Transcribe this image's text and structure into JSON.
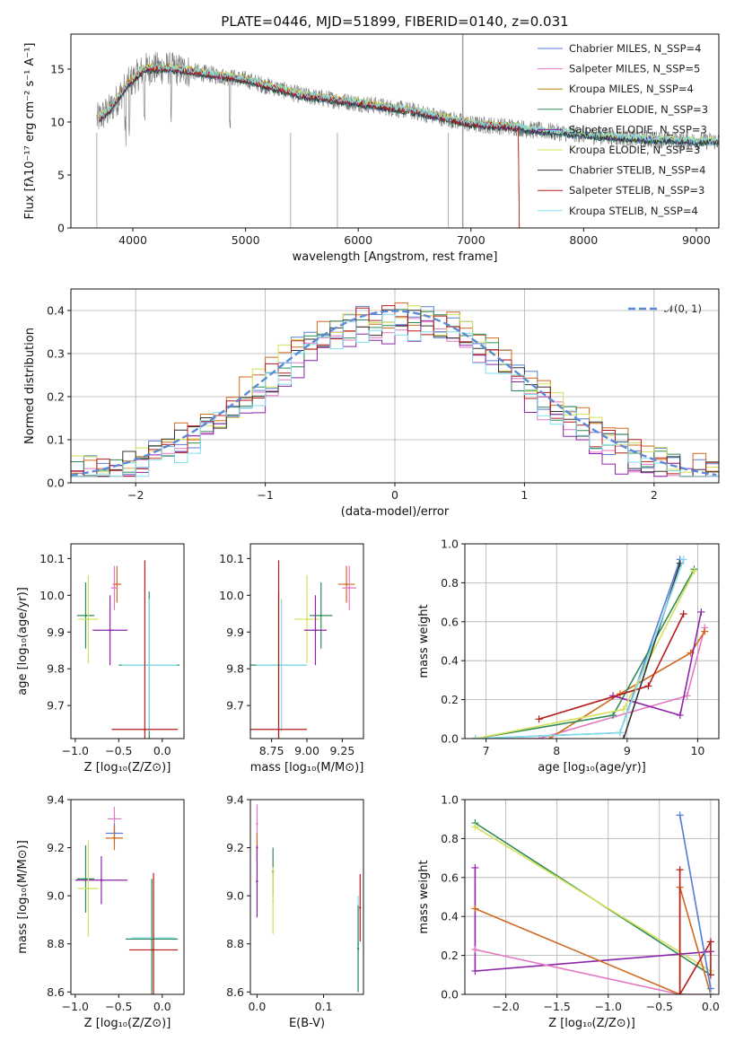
{
  "chart_data": [
    {
      "id": "spectrum",
      "type": "line",
      "title": "PLATE=0446, MJD=51899, FIBERID=0140, z=0.031",
      "xlabel": "wavelength [Angstrom, rest frame]",
      "ylabel": "Flux [fλ10⁻¹⁷ erg cm⁻² s⁻¹ A⁻¹]",
      "xlim": [
        3450,
        9200
      ],
      "ylim": [
        0,
        18.3
      ],
      "xticks": [
        4000,
        5000,
        6000,
        7000,
        8000,
        9000
      ],
      "yticks": [
        0,
        5,
        10,
        15
      ],
      "grid": false,
      "legend_position": "top-right",
      "data_profile": {
        "wavelength": [
          3680,
          3800,
          3950,
          4100,
          4300,
          4500,
          5000,
          5500,
          6000,
          6500,
          7000,
          7420,
          7500,
          8000,
          8500,
          9000
        ],
        "flux": [
          10.2,
          11.2,
          13.5,
          15.0,
          15.1,
          14.8,
          14.0,
          12.5,
          11.8,
          11.0,
          9.8,
          9.5,
          9.3,
          8.8,
          8.4,
          8.2
        ]
      },
      "series": [
        {
          "name": "Chabrier MILES, N_SSP=4",
          "color": "#5a7fd6"
        },
        {
          "name": "Salpeter MILES, N_SSP=5",
          "color": "#e377c2"
        },
        {
          "name": "Kroupa MILES, N_SSP=4",
          "color": "#b8860b"
        },
        {
          "name": "Chabrier ELODIE, N_SSP=3",
          "color": "#2e8b57"
        },
        {
          "name": "Salpeter ELODIE, N_SSP=3",
          "color": "#8e24aa"
        },
        {
          "name": "Kroupa ELODIE, N_SSP=3",
          "color": "#d4e157"
        },
        {
          "name": "Chabrier STELIB, N_SSP=4",
          "color": "#333333"
        },
        {
          "name": "Salpeter STELIB, N_SSP=3",
          "color": "#b71c1c"
        },
        {
          "name": "Kroupa STELIB, N_SSP=4",
          "color": "#80deea"
        }
      ]
    },
    {
      "id": "residuals",
      "type": "line",
      "xlabel": "(data-model)/error",
      "ylabel": "Normed distribution",
      "xlim": [
        -2.5,
        2.5
      ],
      "ylim": [
        0,
        0.45
      ],
      "xticks": [
        -2,
        -1,
        0,
        1,
        2
      ],
      "yticks": [
        0.0,
        0.1,
        0.2,
        0.3,
        0.4
      ],
      "grid": true,
      "legend_position": "top-right",
      "legend": "𝒩(0, 1)",
      "reference_curve": {
        "name": "𝒩(0, 1)",
        "mu": 0,
        "sigma": 1,
        "color": "#5b8ad6"
      },
      "histogram_bins": {
        "start": -2.5,
        "width": 0.1,
        "count": 50
      },
      "series": [
        {
          "name": "Chabrier MILES",
          "color": "#5a7fd6",
          "offset": 0.01
        },
        {
          "name": "Salpeter MILES",
          "color": "#e377c2",
          "offset": -0.015
        },
        {
          "name": "Kroupa MILES",
          "color": "#d2691e",
          "offset": 0.02
        },
        {
          "name": "Chabrier ELODIE",
          "color": "#2e8b57",
          "offset": 0.005
        },
        {
          "name": "Salpeter ELODIE",
          "color": "#8e24aa",
          "offset": -0.02
        },
        {
          "name": "Kroupa ELODIE",
          "color": "#d4e157",
          "offset": 0.015
        },
        {
          "name": "Chabrier STELIB",
          "color": "#333333",
          "offset": 0.0
        },
        {
          "name": "Salpeter STELIB",
          "color": "#b71c1c",
          "offset": 0.008
        },
        {
          "name": "Kroupa STELIB",
          "color": "#80deea",
          "offset": -0.01
        }
      ]
    },
    {
      "id": "z-age",
      "type": "scatter",
      "xlabel": "Z [log₁₀(Z/Z⊙)]",
      "ylabel": "age  [log₁₀(age/yr)]",
      "xlim": [
        -1.05,
        0.25
      ],
      "ylim": [
        9.61,
        10.14
      ],
      "xticks": [
        -1.0,
        -0.5,
        0.0
      ],
      "yticks": [
        9.7,
        9.8,
        9.9,
        10.0,
        10.1
      ],
      "grid": false,
      "points": [
        {
          "x": -0.52,
          "y": 10.03,
          "xerr": 0.05,
          "yerr": 0.05,
          "color": "#d2691e"
        },
        {
          "x": -0.55,
          "y": 10.02,
          "xerr": 0.04,
          "yerr": 0.06,
          "color": "#e377c2"
        },
        {
          "x": -0.88,
          "y": 9.945,
          "xerr": 0.1,
          "yerr": 0.09,
          "color": "#2e8b57"
        },
        {
          "x": -0.85,
          "y": 9.935,
          "xerr": 0.12,
          "yerr": 0.12,
          "color": "#d4e157"
        },
        {
          "x": -0.6,
          "y": 9.905,
          "xerr": 0.2,
          "yerr": 0.095,
          "color": "#8e24aa"
        },
        {
          "x": -0.15,
          "y": 9.81,
          "xerr": 0.35,
          "yerr": 0.2,
          "color": "#2e8b57"
        },
        {
          "x": -0.15,
          "y": 9.81,
          "xerr": 0.32,
          "yerr": 0.18,
          "color": "#80deea"
        },
        {
          "x": -0.2,
          "y": 9.635,
          "xerr": 0.38,
          "yerr": 0.46,
          "color": "#b71c1c"
        }
      ]
    },
    {
      "id": "mass-age",
      "type": "scatter",
      "xlabel": "mass [log₁₀(M/M⊙)]",
      "ylabel": "",
      "xlim": [
        8.6,
        9.4
      ],
      "ylim": [
        9.61,
        10.14
      ],
      "xticks": [
        8.75,
        9.0,
        9.25
      ],
      "yticks": [
        9.7,
        9.8,
        9.9,
        10.0,
        10.1
      ],
      "grid": false,
      "points": [
        {
          "x": 9.28,
          "y": 10.03,
          "xerr": 0.06,
          "yerr": 0.05,
          "color": "#d2691e"
        },
        {
          "x": 9.3,
          "y": 10.02,
          "xerr": 0.05,
          "yerr": 0.06,
          "color": "#e377c2"
        },
        {
          "x": 9.1,
          "y": 9.945,
          "xerr": 0.08,
          "yerr": 0.09,
          "color": "#2e8b57"
        },
        {
          "x": 9.0,
          "y": 9.935,
          "xerr": 0.09,
          "yerr": 0.12,
          "color": "#d4e157"
        },
        {
          "x": 9.06,
          "y": 9.905,
          "xerr": 0.08,
          "yerr": 0.095,
          "color": "#8e24aa"
        },
        {
          "x": 8.8,
          "y": 9.81,
          "xerr": 0.2,
          "yerr": 0.2,
          "color": "#2e8b57"
        },
        {
          "x": 8.82,
          "y": 9.81,
          "xerr": 0.18,
          "yerr": 0.18,
          "color": "#80deea"
        },
        {
          "x": 8.8,
          "y": 9.635,
          "xerr": 0.2,
          "yerr": 0.46,
          "color": "#b71c1c"
        }
      ]
    },
    {
      "id": "age-weight",
      "type": "line",
      "xlabel": "age  [log₁₀(age/yr)]",
      "ylabel": "mass weight",
      "xlim": [
        6.7,
        10.3
      ],
      "ylim": [
        0,
        1.0
      ],
      "xticks": [
        7,
        8,
        9,
        10
      ],
      "yticks": [
        0.0,
        0.2,
        0.4,
        0.6,
        0.8,
        1.0
      ],
      "grid": true,
      "series": [
        {
          "color": "#5a7fd6",
          "x": [
            6.85,
            8.9,
            9.75
          ],
          "y": [
            0.0,
            0.03,
            0.92
          ]
        },
        {
          "color": "#e377c2",
          "x": [
            6.85,
            7.75,
            9.85,
            10.1
          ],
          "y": [
            0.0,
            0.0,
            0.22,
            0.57
          ]
        },
        {
          "color": "#d2691e",
          "x": [
            7.9,
            8.9,
            9.9,
            10.1
          ],
          "y": [
            0.0,
            0.23,
            0.44,
            0.55
          ]
        },
        {
          "color": "#2e8b57",
          "x": [
            6.85,
            8.8,
            9.95
          ],
          "y": [
            0.0,
            0.12,
            0.87
          ]
        },
        {
          "color": "#8e24aa",
          "x": [
            8.8,
            9.75,
            10.05
          ],
          "y": [
            0.22,
            0.12,
            0.65
          ]
        },
        {
          "color": "#d4e157",
          "x": [
            6.85,
            8.95,
            9.95
          ],
          "y": [
            0.0,
            0.15,
            0.86
          ]
        },
        {
          "color": "#333333",
          "x": [
            8.95,
            9.75
          ],
          "y": [
            0.0,
            0.9
          ]
        },
        {
          "color": "#b71c1c",
          "x": [
            7.75,
            9.3,
            9.8
          ],
          "y": [
            0.1,
            0.27,
            0.64
          ]
        },
        {
          "color": "#80deea",
          "x": [
            6.85,
            8.9,
            9.8
          ],
          "y": [
            0.0,
            0.03,
            0.92
          ]
        }
      ]
    },
    {
      "id": "z-mass",
      "type": "scatter",
      "xlabel": "Z [log₁₀(Z/Z⊙)]",
      "ylabel": "mass [log₁₀(M/M⊙)]",
      "xlim": [
        -1.05,
        0.25
      ],
      "ylim": [
        8.59,
        9.4
      ],
      "xticks": [
        -1.0,
        -0.5,
        0.0
      ],
      "yticks": [
        8.6,
        8.8,
        9.0,
        9.2,
        9.4
      ],
      "grid": false,
      "points": [
        {
          "x": -0.55,
          "y": 9.32,
          "xerr": 0.08,
          "yerr": 0.05,
          "color": "#e377c2"
        },
        {
          "x": -0.55,
          "y": 9.26,
          "xerr": 0.1,
          "yerr": 0.04,
          "color": "#5a7fd6"
        },
        {
          "x": -0.55,
          "y": 9.24,
          "xerr": 0.1,
          "yerr": 0.05,
          "color": "#d2691e"
        },
        {
          "x": -0.88,
          "y": 9.07,
          "xerr": 0.1,
          "yerr": 0.14,
          "color": "#2e8b57"
        },
        {
          "x": -0.7,
          "y": 9.065,
          "xerr": 0.3,
          "yerr": 0.1,
          "color": "#8e24aa"
        },
        {
          "x": -0.85,
          "y": 9.03,
          "xerr": 0.12,
          "yerr": 0.2,
          "color": "#d4e157"
        },
        {
          "x": -0.12,
          "y": 8.82,
          "xerr": 0.3,
          "yerr": 0.25,
          "color": "#2e8b57"
        },
        {
          "x": -0.1,
          "y": 8.825,
          "xerr": 0.25,
          "yerr": 0.2,
          "color": "#80deea"
        },
        {
          "x": -0.1,
          "y": 8.775,
          "xerr": 0.28,
          "yerr": 0.32,
          "color": "#b71c1c"
        }
      ]
    },
    {
      "id": "ebv-mass",
      "type": "scatter",
      "xlabel": "E(B-V)",
      "ylabel": "",
      "xlim": [
        -0.01,
        0.16
      ],
      "ylim": [
        8.59,
        9.4
      ],
      "xticks": [
        0.0,
        0.1
      ],
      "yticks": [
        8.6,
        8.8,
        9.0,
        9.2,
        9.4
      ],
      "grid": false,
      "points": [
        {
          "x": 0.0,
          "y": 9.3,
          "xerr": 0.001,
          "yerr": 0.08,
          "color": "#e377c2"
        },
        {
          "x": 0.0,
          "y": 9.2,
          "xerr": 0.001,
          "yerr": 0.06,
          "color": "#d2691e"
        },
        {
          "x": 0.0,
          "y": 9.06,
          "xerr": 0.001,
          "yerr": 0.15,
          "color": "#8e24aa"
        },
        {
          "x": 0.024,
          "y": 9.1,
          "xerr": 0.001,
          "yerr": 0.1,
          "color": "#2e8b57"
        },
        {
          "x": 0.024,
          "y": 8.98,
          "xerr": 0.001,
          "yerr": 0.14,
          "color": "#d4e157"
        },
        {
          "x": 0.155,
          "y": 8.95,
          "xerr": 0.001,
          "yerr": 0.14,
          "color": "#b71c1c"
        },
        {
          "x": 0.152,
          "y": 8.8,
          "xerr": 0.001,
          "yerr": 0.2,
          "color": "#80deea"
        },
        {
          "x": 0.152,
          "y": 8.78,
          "xerr": 0.001,
          "yerr": 0.18,
          "color": "#2e8b57"
        }
      ]
    },
    {
      "id": "z-weight",
      "type": "line",
      "xlabel": "Z [log₁₀(Z/Z⊙)]",
      "ylabel": "mass weight",
      "xlim": [
        -2.4,
        0.08
      ],
      "ylim": [
        0,
        1.0
      ],
      "xticks": [
        -2.0,
        -1.5,
        -1.0,
        -0.5,
        0.0
      ],
      "yticks": [
        0.0,
        0.2,
        0.4,
        0.6,
        0.8,
        1.0
      ],
      "grid": true,
      "series": [
        {
          "color": "#2e8b57",
          "x": [
            -2.3,
            0.0
          ],
          "y": [
            0.88,
            0.1
          ]
        },
        {
          "color": "#d4e157",
          "x": [
            -2.3,
            0.0
          ],
          "y": [
            0.86,
            0.12
          ]
        },
        {
          "color": "#8e24aa",
          "x": [
            -2.3,
            -2.3,
            0.0
          ],
          "y": [
            0.65,
            0.12,
            0.22
          ]
        },
        {
          "color": "#e377c2",
          "x": [
            -2.3,
            -0.3,
            0.0
          ],
          "y": [
            0.23,
            0.0,
            0.0
          ]
        },
        {
          "color": "#d2691e",
          "x": [
            -2.3,
            -0.3,
            -0.3,
            0.0
          ],
          "y": [
            0.44,
            0.0,
            0.55,
            0.0
          ]
        },
        {
          "color": "#b71c1c",
          "x": [
            -0.3,
            -0.3,
            0.0,
            0.0
          ],
          "y": [
            0.64,
            0.0,
            0.27,
            0.1
          ]
        },
        {
          "color": "#80deea",
          "x": [
            -0.3,
            0.0,
            0.0
          ],
          "y": [
            0.92,
            0.03,
            0.0
          ]
        },
        {
          "color": "#5a7fd6",
          "x": [
            -0.3,
            0.0
          ],
          "y": [
            0.92,
            0.03
          ]
        }
      ]
    }
  ]
}
